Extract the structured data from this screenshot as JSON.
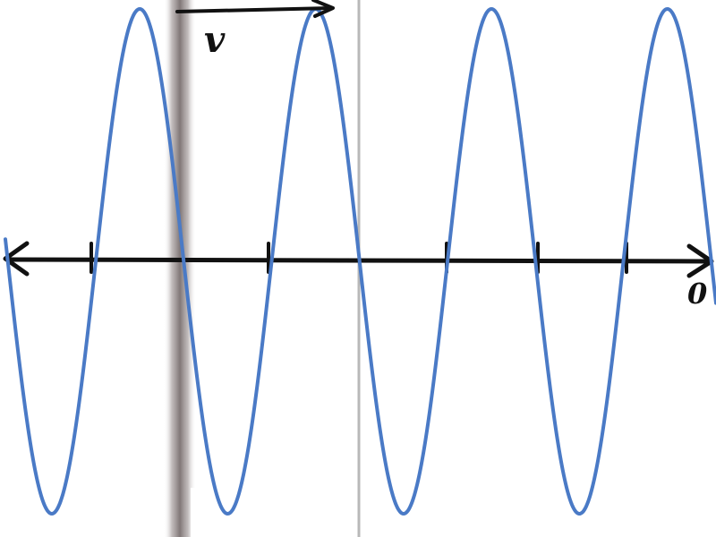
{
  "diagram": {
    "velocity_label": "v",
    "origin_label": "0",
    "colors": {
      "wave": "#4a7ac6",
      "axis": "#111111",
      "shadow_line": "#7d7373",
      "thin_line": "#b8b8b8",
      "background": "#ffffff"
    },
    "wave_cycles_visible": 4,
    "icons": {
      "axis_left_arrow": "arrowhead-left-icon",
      "axis_right_arrow": "arrowhead-right-icon",
      "velocity_arrow": "arrow-right-icon"
    }
  }
}
